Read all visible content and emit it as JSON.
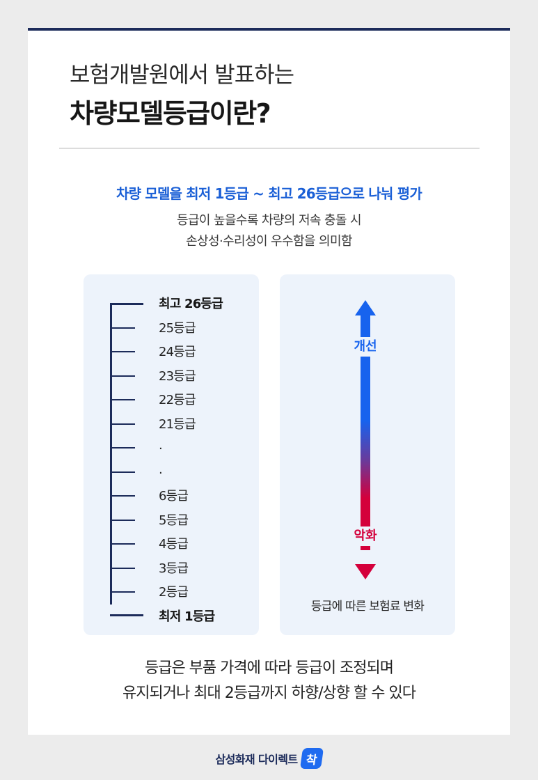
{
  "title": {
    "line1": "보험개발원에서 발표하는",
    "line2": "차량모델등급이란?"
  },
  "headline": "차량 모델을 최저 1등급 ~ 최고 26등급으로 나눠 평가",
  "subtext": [
    "등급이 높을수록 차량의 저속 충돌 시",
    "손상성·수리성이 우수함을 의미함"
  ],
  "grade_scale": {
    "labels": [
      "최고 26등급",
      "25등급",
      "24등급",
      "23등급",
      "22등급",
      "21등급",
      ".",
      ".",
      "6등급",
      "5등급",
      "4등급",
      "3등급",
      "2등급",
      "최저 1등급"
    ]
  },
  "change_panel": {
    "up_label": "개선",
    "down_label": "악화",
    "caption": "등급에 따른 보험료 변화",
    "up_color": "#1763ee",
    "down_color": "#d4003b"
  },
  "footer": [
    "등급은 부품 가격에 따라 등급이 조정되며",
    "유지되거나 최대 2등급까지 하향/상향 할 수 있다"
  ],
  "brand": {
    "name": "삼성화재 다이렉트",
    "badge": "착"
  }
}
